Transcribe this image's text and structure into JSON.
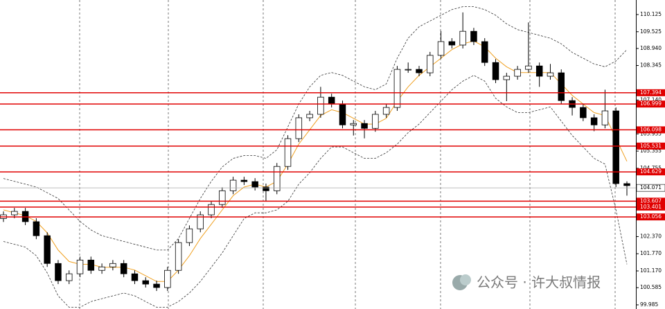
{
  "chart_data": {
    "type": "candlestick",
    "open": [
      103.0,
      103.13,
      103.25,
      102.89,
      102.4,
      101.43,
      100.83,
      101.07,
      101.55,
      101.19,
      101.31,
      101.43,
      101.07,
      100.83,
      100.71,
      100.59,
      101.19,
      102.16,
      102.64,
      103.13,
      103.49,
      103.97,
      104.34,
      104.29,
      104.1,
      103.97,
      104.82,
      105.79,
      106.52,
      106.64,
      107.24,
      107.0,
      106.27,
      106.32,
      106.15,
      106.64,
      106.88,
      108.21,
      108.21,
      108.09,
      108.7,
      109.18,
      109.06,
      109.54,
      109.18,
      108.45,
      107.85,
      107.97,
      108.21,
      108.33,
      107.97,
      108.09,
      107.12,
      106.88,
      106.52,
      106.27,
      106.76,
      104.22
    ],
    "high": [
      103.25,
      103.37,
      103.37,
      103.01,
      102.52,
      101.55,
      101.19,
      101.67,
      101.67,
      101.43,
      101.55,
      101.55,
      101.19,
      100.95,
      100.83,
      101.31,
      102.28,
      102.76,
      103.25,
      103.61,
      104.09,
      104.46,
      104.46,
      104.41,
      104.22,
      104.94,
      105.91,
      106.64,
      106.76,
      107.6,
      107.36,
      107.12,
      106.44,
      106.44,
      106.76,
      107.0,
      108.33,
      108.45,
      108.33,
      108.82,
      109.55,
      109.3,
      110.2,
      109.66,
      109.3,
      108.57,
      108.09,
      108.33,
      109.85,
      108.45,
      108.4,
      108.21,
      107.24,
      107.0,
      106.64,
      107.5,
      106.88,
      104.3
    ],
    "low": [
      102.88,
      103.01,
      102.77,
      102.28,
      101.31,
      100.71,
      100.71,
      100.95,
      101.07,
      101.07,
      101.19,
      100.95,
      100.71,
      100.59,
      100.47,
      100.47,
      101.07,
      102.04,
      102.52,
      103.01,
      103.37,
      103.85,
      104.17,
      103.98,
      103.6,
      103.85,
      104.7,
      105.67,
      106.4,
      106.52,
      106.88,
      106.15,
      105.9,
      105.8,
      106.03,
      106.52,
      106.76,
      108.09,
      107.97,
      107.97,
      108.58,
      108.94,
      108.94,
      109.06,
      108.33,
      107.73,
      107.1,
      107.85,
      108.09,
      107.6,
      107.85,
      107.0,
      106.6,
      106.4,
      106.05,
      106.15,
      104.1,
      103.8
    ],
    "close": [
      103.13,
      103.25,
      102.89,
      102.4,
      101.43,
      100.83,
      101.07,
      101.55,
      101.19,
      101.31,
      101.43,
      101.07,
      100.83,
      100.71,
      100.59,
      101.19,
      102.16,
      102.64,
      103.13,
      103.49,
      103.97,
      104.34,
      104.29,
      104.1,
      103.97,
      104.82,
      105.79,
      106.52,
      106.64,
      107.24,
      107.0,
      106.27,
      106.32,
      106.15,
      106.64,
      106.88,
      108.21,
      108.21,
      108.09,
      108.7,
      109.18,
      109.06,
      109.54,
      109.18,
      108.45,
      107.85,
      107.97,
      108.21,
      108.33,
      107.97,
      108.09,
      107.12,
      106.88,
      106.52,
      106.27,
      106.76,
      104.22,
      104.15
    ],
    "up_color": "#ffffff",
    "down_color": "#000000",
    "lines": [
      {
        "color": "#f0a020",
        "dash": false,
        "values": [
          103.3,
          103.2,
          103.1,
          102.9,
          102.5,
          101.9,
          101.5,
          101.4,
          101.4,
          101.3,
          101.3,
          101.3,
          101.2,
          101.0,
          100.8,
          100.8,
          101.2,
          101.7,
          102.3,
          102.8,
          103.3,
          103.8,
          104.1,
          104.2,
          104.1,
          104.3,
          104.9,
          105.6,
          106.1,
          106.6,
          106.8,
          106.7,
          106.5,
          106.3,
          106.3,
          106.5,
          107.1,
          107.6,
          108.0,
          108.3,
          108.6,
          108.9,
          109.1,
          109.2,
          109.0,
          108.6,
          108.3,
          108.1,
          108.1,
          108.1,
          108.1,
          107.7,
          107.3,
          107.0,
          106.7,
          106.6,
          105.8,
          105.0
        ]
      },
      {
        "color": "#333333",
        "dash": true,
        "values": [
          104.4,
          104.3,
          104.2,
          104.1,
          103.9,
          103.7,
          103.3,
          102.9,
          102.6,
          102.4,
          102.3,
          102.2,
          102.1,
          102.0,
          101.9,
          101.9,
          102.3,
          103.0,
          103.7,
          104.3,
          104.8,
          105.1,
          105.2,
          105.2,
          105.1,
          105.4,
          106.2,
          107.0,
          107.6,
          108.0,
          108.1,
          108.0,
          107.8,
          107.6,
          107.5,
          107.7,
          108.6,
          109.3,
          109.7,
          109.9,
          110.1,
          110.3,
          110.4,
          110.4,
          110.3,
          110.1,
          109.8,
          109.6,
          109.5,
          109.4,
          109.3,
          109.1,
          108.8,
          108.6,
          108.4,
          108.3,
          108.5,
          108.9
        ]
      },
      {
        "color": "#333333",
        "dash": true,
        "values": [
          102.2,
          102.1,
          102.0,
          101.7,
          101.1,
          100.3,
          99.9,
          99.9,
          100.1,
          100.2,
          100.3,
          100.4,
          100.3,
          100.1,
          99.9,
          99.9,
          100.1,
          100.4,
          100.8,
          101.3,
          101.8,
          102.4,
          103.0,
          103.2,
          103.2,
          103.3,
          103.6,
          104.2,
          104.6,
          105.1,
          105.5,
          105.5,
          105.3,
          105.1,
          105.1,
          105.3,
          105.6,
          106.0,
          106.3,
          106.7,
          107.1,
          107.5,
          107.8,
          108.0,
          107.8,
          107.2,
          106.9,
          106.7,
          106.7,
          106.8,
          106.9,
          106.4,
          105.9,
          105.5,
          105.1,
          104.9,
          103.3,
          101.4
        ]
      }
    ],
    "levels": [
      107.394,
      106.999,
      106.098,
      105.531,
      104.629,
      103.607,
      103.401,
      103.056
    ],
    "level_color": "#e00000",
    "last_price": 104.071,
    "ylim": [
      99.84,
      110.633
    ],
    "yticks": [
      110.125,
      109.525,
      {
        "value": 108.94,
        "label": "108.940"
      },
      108.345,
      {
        "value": 107.14,
        "label": "107.140"
      },
      105.955,
      105.355,
      104.755,
      {
        "value": 102.37,
        "label": "102.370"
      },
      {
        "value": 101.77,
        "label": "101.770"
      },
      {
        "value": 101.17,
        "label": "101.170"
      },
      100.585,
      99.985
    ],
    "watermark": "公众号 · 许大叔情报"
  }
}
